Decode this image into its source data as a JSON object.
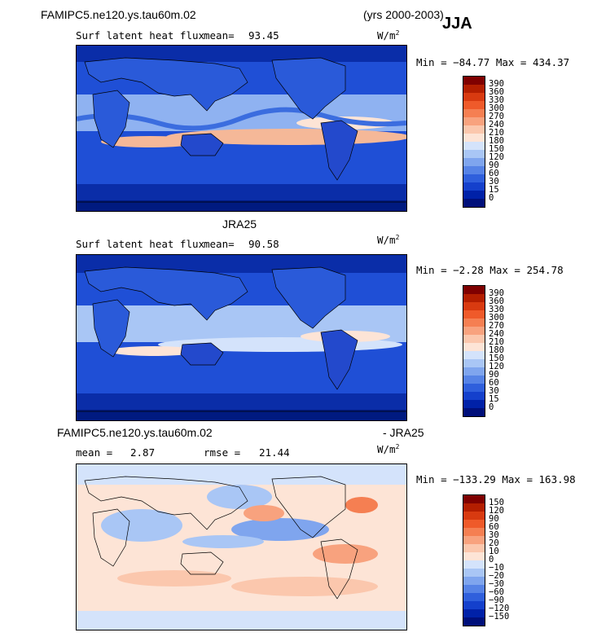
{
  "header": {
    "case_name": "FAMIPC5.ne120.ys.tau60m.02",
    "years": "(yrs 2000-2003)",
    "season": "JJA"
  },
  "panel1": {
    "variable": "Surf latent heat flux",
    "mean_label": "mean=",
    "mean_value": "93.45",
    "units": "W/m",
    "units_exp": "2",
    "minmax": "Min = −84.77 Max = 434.37",
    "colorbar_ticks": [
      "390",
      "360",
      "330",
      "300",
      "270",
      "240",
      "210",
      "180",
      "150",
      "120",
      "90",
      "60",
      "30",
      "15",
      "0"
    ]
  },
  "panel2": {
    "dataset": "JRA25",
    "variable": "Surf latent heat flux",
    "mean_label": "mean=",
    "mean_value": "90.58",
    "units": "W/m",
    "units_exp": "2",
    "minmax": "Min =  −2.28 Max = 254.78",
    "colorbar_ticks": [
      "390",
      "360",
      "330",
      "300",
      "270",
      "240",
      "210",
      "180",
      "150",
      "120",
      "90",
      "60",
      "30",
      "15",
      "0"
    ]
  },
  "panel3": {
    "title_left": "FAMIPC5.ne120.ys.tau60m.02",
    "title_right": "- JRA25",
    "mean_label": "mean =",
    "mean_value": "2.87",
    "rmse_label": "rmse =",
    "rmse_value": "21.44",
    "units": "W/m",
    "units_exp": "2",
    "minmax": "Min = −133.29 Max = 163.98",
    "colorbar_ticks": [
      "150",
      "120",
      "90",
      "60",
      "30",
      "20",
      "10",
      "0",
      "−10",
      "−20",
      "−30",
      "−60",
      "−90",
      "−120",
      "−150"
    ]
  },
  "colors": {
    "abs_scale": [
      "#7f0000",
      "#b31e00",
      "#d83a10",
      "#ef5a2a",
      "#f57f52",
      "#f8a27e",
      "#fbc7ad",
      "#fde4d6",
      "#d4e3fb",
      "#a9c6f5",
      "#7fa5ee",
      "#5683e6",
      "#2f5fdc",
      "#1440cc",
      "#0021a8",
      "#000f7a"
    ],
    "diff_scale": [
      "#7f0000",
      "#b31e00",
      "#d83a10",
      "#ef5a2a",
      "#f57f52",
      "#f8a27e",
      "#fbc7ad",
      "#fde4d6",
      "#d4e3fb",
      "#a9c6f5",
      "#7fa5ee",
      "#5683e6",
      "#2f5fdc",
      "#1440cc",
      "#0021a8",
      "#000f7a"
    ]
  }
}
